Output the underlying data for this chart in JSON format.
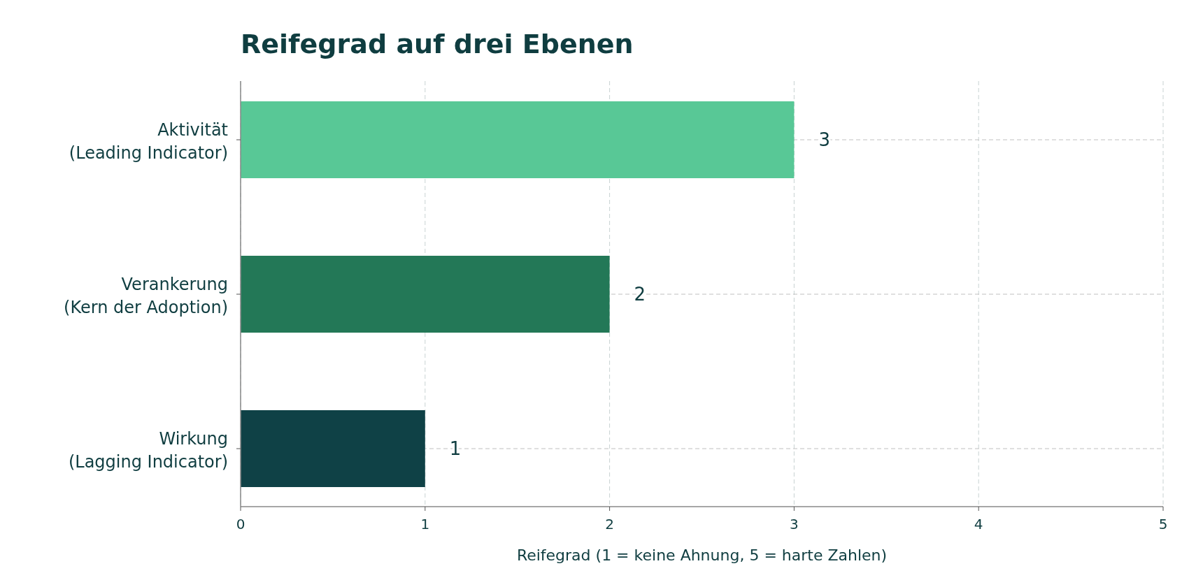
{
  "chart_data": {
    "type": "bar",
    "orientation": "horizontal",
    "title": "Reifegrad auf drei Ebenen",
    "xlabel": "Reifegrad (1 = keine Ahnung, 5 = harte Zahlen)",
    "categories": [
      "Aktivität\n(Leading Indicator)",
      "Verankerung\n(Kern der Adoption)",
      "Wirkung\n(Lagging Indicator)"
    ],
    "values": [
      3,
      2,
      1
    ],
    "colors": [
      "#58c896",
      "#237857",
      "#0f4146"
    ],
    "xlim": [
      0,
      5
    ],
    "xticks": [
      0,
      1,
      2,
      3,
      4,
      5
    ],
    "grid": true,
    "data_labels": true
  }
}
